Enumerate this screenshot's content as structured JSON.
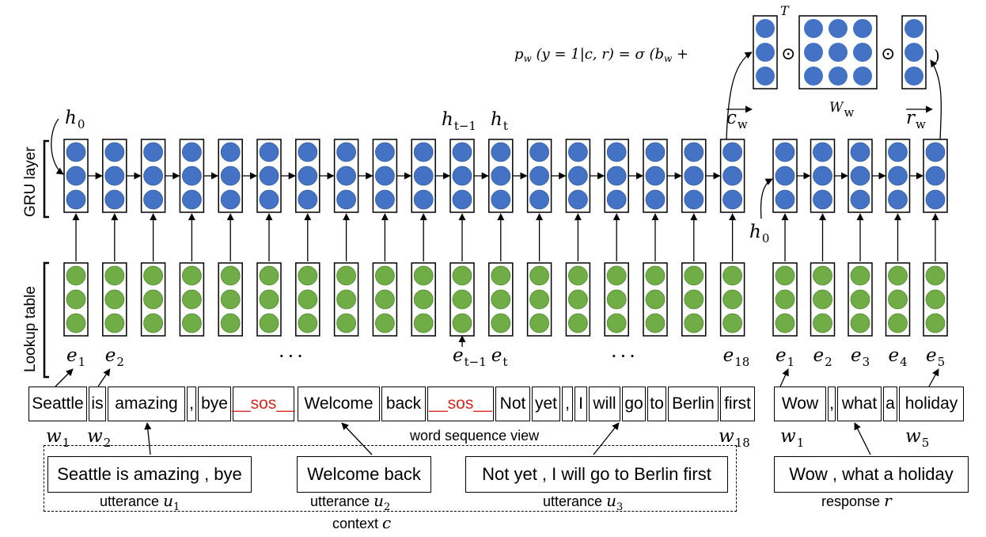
{
  "formula": {
    "text": "p_w (y = 1|c, r) = σ (b_w +",
    "closing": ")",
    "dot_operator": "⊙",
    "transpose": "T",
    "matrix_label": "W_w"
  },
  "layer_labels": {
    "gru": "GRU layer",
    "lookup": "Lookup table"
  },
  "hidden_labels": {
    "h0_context": "h_0",
    "h0_response": "h_0",
    "h_t_minus_1": "h_{t−1}",
    "h_t": "h_t",
    "c_w": "c_w",
    "r_w": "r_w"
  },
  "embedding_labels": {
    "context": [
      "e_1",
      "e_2",
      "e_{t−1}",
      "e_t",
      "e_18"
    ],
    "response": [
      "e_1",
      "e_2",
      "e_3",
      "e_4",
      "e_5"
    ],
    "ellipsis": "···"
  },
  "word_sequence": {
    "context_words": [
      "Seattle",
      "is",
      "amazing",
      ",",
      "bye",
      "__sos__",
      "Welcome",
      "back",
      "__sos__",
      "Not",
      "yet",
      ",",
      "I",
      "will",
      "go",
      "to",
      "Berlin",
      "first"
    ],
    "response_words": [
      "Wow",
      ",",
      "what",
      "a",
      "holiday"
    ],
    "caption": "word sequence view",
    "w_labels_context": [
      "w_1",
      "w_2",
      "w_18"
    ],
    "w_labels_response": [
      "w_1",
      "w_5"
    ]
  },
  "utterances": [
    {
      "text": "Seattle is amazing , bye",
      "caption": "utterance",
      "var": "u",
      "sub": "1"
    },
    {
      "text": "Welcome back",
      "caption": "utterance",
      "var": "u",
      "sub": "2"
    },
    {
      "text": "Not yet , I will go to Berlin first",
      "caption": "utterance",
      "var": "u",
      "sub": "3"
    }
  ],
  "context_caption": {
    "text": "context",
    "var": "c"
  },
  "response": {
    "text": "Wow , what a holiday",
    "caption": "response",
    "var": "r"
  },
  "colors": {
    "gru_node": "#4472c4",
    "embed_node": "#70ad47",
    "sos_text": "#d9281e",
    "stroke": "#000000"
  }
}
